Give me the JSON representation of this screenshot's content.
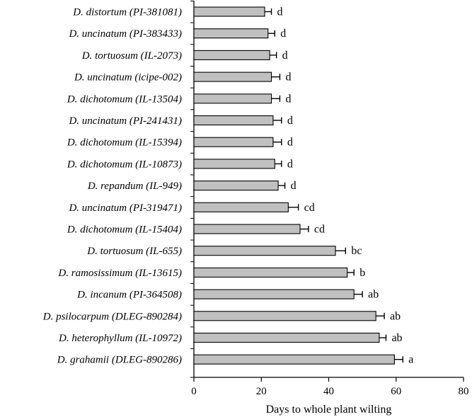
{
  "chart_data": {
    "type": "bar",
    "orientation": "horizontal",
    "xlabel": "Days to whole plant wilting",
    "ylabel": "",
    "xlim": [
      0,
      80
    ],
    "x_ticks": [
      0,
      20,
      40,
      60,
      80
    ],
    "grid": false,
    "bar_color": "#c0c0c0",
    "bar_edge_color": "#000000",
    "categories": [
      "D. distortum (PI-381081)",
      "D. uncinatum (PI-383433)",
      "D. tortuosum (IL-2073)",
      "D. uncinatum (icipe-002)",
      "D. dichotomum (IL-13504)",
      "D. uncinatum (PI-241431)",
      "D. dichotomum (IL-15394)",
      "D. dichotomum (IL-10873)",
      "D. repandum (IL-949)",
      "D. uncinatum (PI-319471)",
      "D. dichotomum (IL-15404)",
      "D. tortuosum (IL-655)",
      "D. ramosissimum (IL-13615)",
      "D. incanum (PI-364508)",
      "D. psilocarpum (DLEG-890284)",
      "D. heterophyllum (IL-10972)",
      "D. grahamii (DLEG-890286)"
    ],
    "values": [
      21,
      22,
      22.5,
      23,
      23,
      23.5,
      23.5,
      24,
      25,
      28,
      31.5,
      42,
      45.5,
      47.5,
      54,
      55,
      59.5
    ],
    "errors": [
      2,
      2,
      2,
      2.5,
      2.5,
      2.5,
      2.5,
      2,
      2,
      3,
      2.5,
      3,
      2,
      2.5,
      2.5,
      2,
      2.5
    ],
    "significance_letters": [
      "d",
      "d",
      "d",
      "d",
      "d",
      "d",
      "d",
      "d",
      "d",
      "cd",
      "cd",
      "bc",
      "b",
      "ab",
      "ab",
      "ab",
      "a"
    ]
  }
}
